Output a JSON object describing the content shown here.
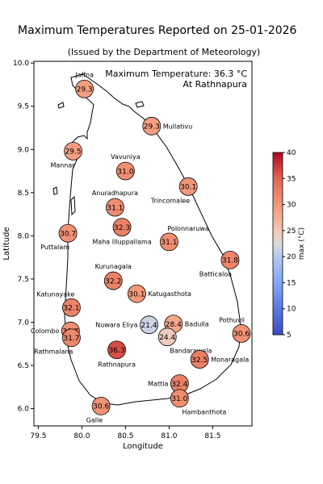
{
  "title": "Maximum Temperatures Reported on 25-01-2026",
  "subtitle": "(Issued by the Department of Meteorology)",
  "annotation": {
    "line1": "Maximum Temperature: 36.3 °C",
    "line2": "At Rathnapura"
  },
  "chart_data": {
    "type": "scatter",
    "xlabel": "Longitude",
    "ylabel": "Latitude",
    "xlim": [
      79.45,
      81.95
    ],
    "ylim": [
      5.8,
      10.02
    ],
    "xticks": [
      "79.5",
      "80.0",
      "80.5",
      "81.0",
      "81.5"
    ],
    "yticks": [
      "6.0",
      "6.5",
      "7.0",
      "7.5",
      "8.0",
      "8.5",
      "9.0",
      "9.5",
      "10.0"
    ],
    "colorbar": {
      "label": "max (°C)",
      "min": 5,
      "max": 40,
      "ticks": [
        "5",
        "10",
        "15",
        "20",
        "25",
        "30",
        "35",
        "40"
      ],
      "colormap": "coolwarm"
    },
    "stations": [
      {
        "name": "Jaffna",
        "lon": 80.03,
        "lat": 9.7,
        "value": "29.3",
        "label_pos": "top"
      },
      {
        "name": "Mullativu",
        "lon": 80.8,
        "lat": 9.27,
        "value": "29.3",
        "label_pos": "right"
      },
      {
        "name": "Mannar",
        "lon": 79.9,
        "lat": 8.98,
        "value": "29.5",
        "label_pos": "bottom-left"
      },
      {
        "name": "Vavuniya",
        "lon": 80.5,
        "lat": 8.75,
        "value": "31.0",
        "label_pos": "top"
      },
      {
        "name": "Trincomalee",
        "lon": 81.22,
        "lat": 8.57,
        "value": "30.1",
        "label_pos": "bottom-left"
      },
      {
        "name": "Anuradhapura",
        "lon": 80.38,
        "lat": 8.33,
        "value": "31.1",
        "label_pos": "top"
      },
      {
        "name": "Maha Illuppallama",
        "lon": 80.46,
        "lat": 8.1,
        "value": "32.3",
        "label_pos": "bottom"
      },
      {
        "name": "Puttalam",
        "lon": 79.84,
        "lat": 8.03,
        "value": "30.7",
        "label_pos": "bottom-left"
      },
      {
        "name": "Polonnaruwa",
        "lon": 81.0,
        "lat": 7.93,
        "value": "31.1",
        "label_pos": "top-right"
      },
      {
        "name": "Batticaloa",
        "lon": 81.7,
        "lat": 7.72,
        "value": "31.8",
        "label_pos": "bottom-left"
      },
      {
        "name": "Kurunagala",
        "lon": 80.36,
        "lat": 7.48,
        "value": "32.2",
        "label_pos": "top"
      },
      {
        "name": "Katugasthota",
        "lon": 80.63,
        "lat": 7.33,
        "value": "30.1",
        "label_pos": "right"
      },
      {
        "name": "Katunayake",
        "lon": 79.88,
        "lat": 7.17,
        "value": "32.1",
        "label_pos": "top-left"
      },
      {
        "name": "Nuwara Eliya",
        "lon": 80.77,
        "lat": 6.97,
        "value": "21.4",
        "label_pos": "left"
      },
      {
        "name": "Badulla",
        "lon": 81.05,
        "lat": 6.98,
        "value": "28.4",
        "label_pos": "right"
      },
      {
        "name": "Pothuvil",
        "lon": 81.83,
        "lat": 6.87,
        "value": "30.6",
        "label_pos": "top-left"
      },
      {
        "name": "Colombo",
        "lon": 79.87,
        "lat": 6.9,
        "value": "30.7",
        "label_pos": "left"
      },
      {
        "name": "Bandarawela",
        "lon": 80.98,
        "lat": 6.83,
        "value": "24.4",
        "label_pos": "bottom-right"
      },
      {
        "name": "Rathnapura",
        "lon": 80.4,
        "lat": 6.68,
        "value": "36.3",
        "label_pos": "bottom"
      },
      {
        "name": "Rathmalana",
        "lon": 79.88,
        "lat": 6.82,
        "value": "31.7",
        "label_pos": "bottom-left"
      },
      {
        "name": "Monaragala",
        "lon": 81.35,
        "lat": 6.57,
        "value": "32.5",
        "label_pos": "right"
      },
      {
        "name": "Mattla",
        "lon": 81.12,
        "lat": 6.29,
        "value": "32.4",
        "label_pos": "left"
      },
      {
        "name": "Hambanthota",
        "lon": 81.12,
        "lat": 6.12,
        "value": "31.0",
        "label_pos": "bottom-right"
      },
      {
        "name": "Galle",
        "lon": 80.22,
        "lat": 6.03,
        "value": "30.6",
        "label_pos": "bottom-left"
      }
    ]
  }
}
